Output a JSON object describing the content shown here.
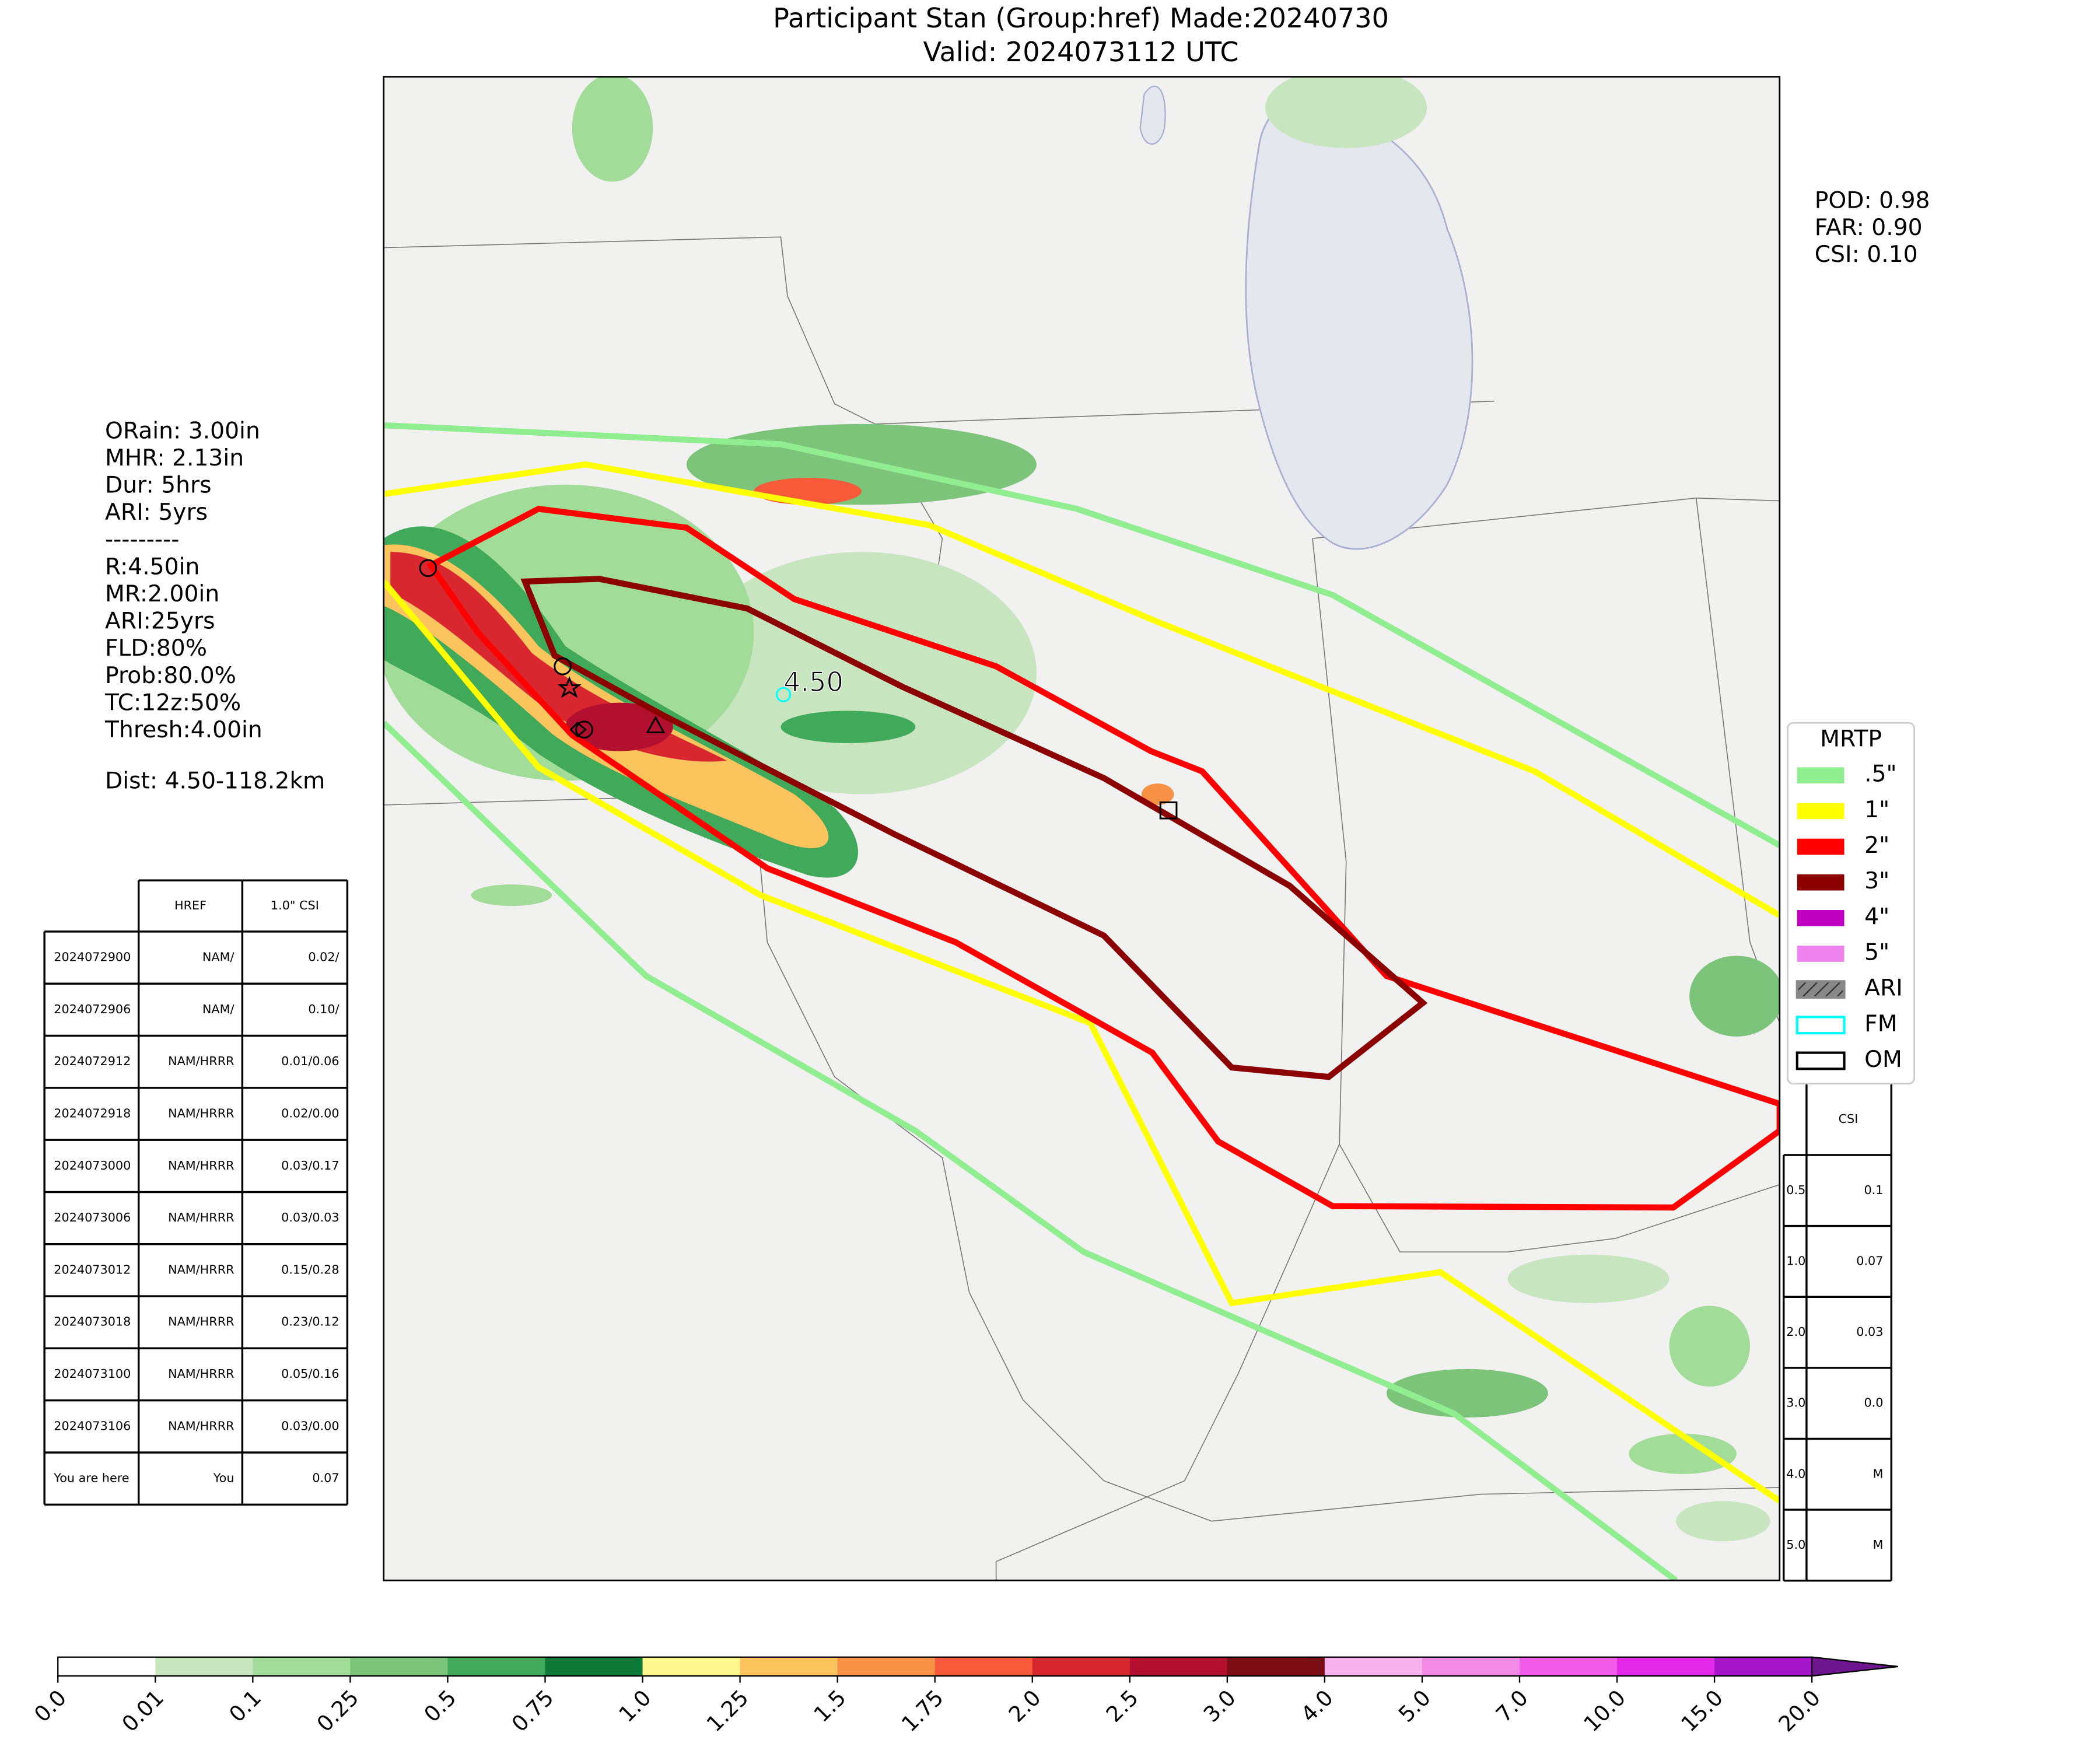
{
  "title": [
    "Participant Stan (Group:href) Made:20240730",
    "Valid: 2024073112 UTC"
  ],
  "scores": [
    "POD: 0.98",
    "FAR: 0.90",
    "CSI: 0.10"
  ],
  "info": [
    "ORain: 3.00in",
    "MHR: 2.13in",
    "Dur: 5hrs",
    "ARI: 5yrs",
    "---------",
    "R:4.50in",
    "MR:2.00in",
    "ARI:25yrs",
    "FLD:80%",
    "Prob:80.0%",
    "TC:12z:50%",
    "Thresh:4.00in"
  ],
  "distance": "Dist: 4.50-118.2km",
  "map_label": "4.50",
  "left_table": {
    "header": [
      "HREF",
      "1.0\" CSI"
    ],
    "rows": [
      [
        "2024072900",
        "NAM/",
        "0.02/"
      ],
      [
        "2024072906",
        "NAM/",
        "0.10/"
      ],
      [
        "2024072912",
        "NAM/HRRR",
        "0.01/0.06"
      ],
      [
        "2024072918",
        "NAM/HRRR",
        "0.02/0.00"
      ],
      [
        "2024073000",
        "NAM/HRRR",
        "0.03/0.17"
      ],
      [
        "2024073006",
        "NAM/HRRR",
        "0.03/0.03"
      ],
      [
        "2024073012",
        "NAM/HRRR",
        "0.15/0.28"
      ],
      [
        "2024073018",
        "NAM/HRRR",
        "0.23/0.12"
      ],
      [
        "2024073100",
        "NAM/HRRR",
        "0.05/0.16"
      ],
      [
        "2024073106",
        "NAM/HRRR",
        "0.03/0.00"
      ],
      [
        "You are here",
        "You",
        "0.07"
      ]
    ]
  },
  "right_table": {
    "header": "CSI",
    "rows": [
      [
        "0.5",
        "0.1"
      ],
      [
        "1.0",
        "0.07"
      ],
      [
        "2.0",
        "0.03"
      ],
      [
        "3.0",
        "0.0"
      ],
      [
        "4.0",
        "M"
      ],
      [
        "5.0",
        "M"
      ]
    ]
  },
  "legend": {
    "title": "MRTP",
    "items": [
      {
        "label": ".5\"",
        "color": "#90ee90"
      },
      {
        "label": "1\"",
        "color": "#ffff00"
      },
      {
        "label": "2\"",
        "color": "#ff0000"
      },
      {
        "label": "3\"",
        "color": "#8b0000"
      },
      {
        "label": "4\"",
        "color": "#c000c0"
      },
      {
        "label": "5\"",
        "color": "#ee82ee"
      },
      {
        "label": "ARI",
        "color": "#888888"
      },
      {
        "label": "FM",
        "color": "#00ffff"
      },
      {
        "label": "OM",
        "color": "#000000"
      }
    ]
  },
  "colorbar": {
    "ticks": [
      "0.0",
      "0.01",
      "0.1",
      "0.25",
      "0.5",
      "0.75",
      "1.0",
      "1.25",
      "1.5",
      "1.75",
      "2.0",
      "2.5",
      "3.0",
      "4.0",
      "5.0",
      "7.0",
      "10.0",
      "15.0",
      "20.0"
    ],
    "colors": [
      "#ffffff",
      "#c7e6c0",
      "#a1dc98",
      "#7bc47a",
      "#41a95a",
      "#0f7a37",
      "#fcf68f",
      "#fbc45d",
      "#f99147",
      "#f65a38",
      "#d9272f",
      "#b3102f",
      "#7c0d14",
      "#f7b2ee",
      "#f38ae6",
      "#f05be9",
      "#e32ae9",
      "#a414c9"
    ]
  }
}
